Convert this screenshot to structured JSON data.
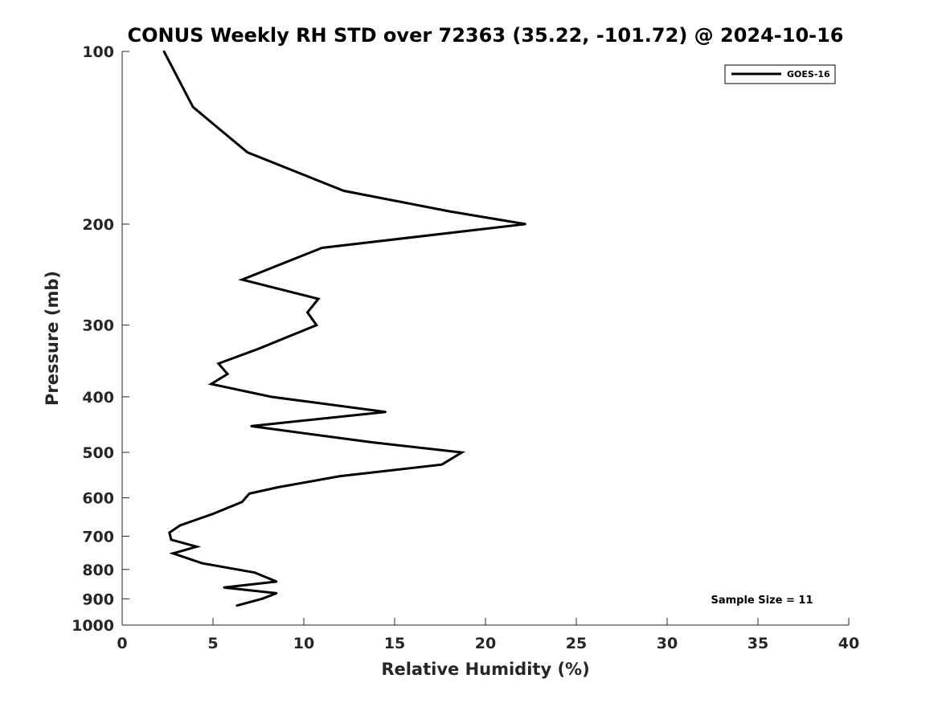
{
  "chart_data": {
    "type": "line",
    "title": "CONUS Weekly RH STD over 72363 (35.22, -101.72) @ 2024-10-16",
    "xlabel": "Relative Humidity (%)",
    "ylabel": "Pressure (mb)",
    "xlim": [
      0,
      40
    ],
    "ylim": [
      100,
      1000
    ],
    "y_scale": "log",
    "y_reversed": true,
    "x_ticks": [
      "0",
      "5",
      "10",
      "15",
      "20",
      "25",
      "30",
      "35",
      "40"
    ],
    "y_ticks": [
      "100",
      "200",
      "300",
      "400",
      "500",
      "600",
      "700",
      "800",
      "900",
      "1000"
    ],
    "grid": false,
    "legend_position": "top-right",
    "series": [
      {
        "name": "GOES-16",
        "color": "#000000",
        "x": [
          2.3,
          3.9,
          6.9,
          12.2,
          18.0,
          22.2,
          11.0,
          6.6,
          10.8,
          10.2,
          10.7,
          7.5,
          5.3,
          5.8,
          4.9,
          8.2,
          14.5,
          7.1,
          13.7,
          18.7,
          17.6,
          12.0,
          8.6,
          7.0,
          6.6,
          5.0,
          3.2,
          2.6,
          2.7,
          4.1,
          2.8,
          4.4,
          7.3,
          8.5,
          5.6,
          8.5,
          7.7,
          6.3
        ],
        "y": [
          100,
          125,
          150,
          175,
          190,
          200,
          220,
          250,
          270,
          285,
          300,
          330,
          350,
          365,
          380,
          400,
          425,
          450,
          480,
          500,
          525,
          550,
          575,
          590,
          610,
          640,
          670,
          690,
          710,
          730,
          750,
          780,
          810,
          840,
          860,
          880,
          900,
          925
        ]
      }
    ],
    "annotations": [
      "Sample Size = 11"
    ]
  }
}
